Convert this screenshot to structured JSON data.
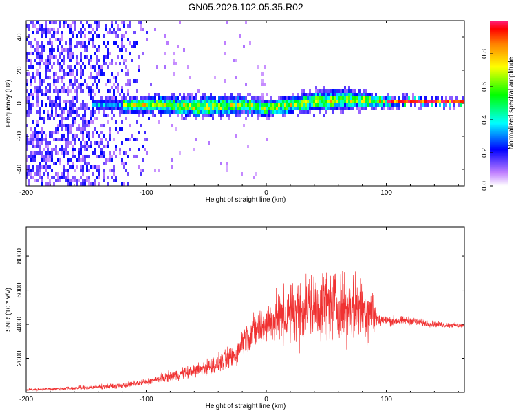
{
  "title": "GN05.2026.102.05.35.R02",
  "chart_data": [
    {
      "type": "heatmap",
      "xlabel": "Height of straight line (km)",
      "ylabel": "Frequency (Hz)",
      "xlim": [
        -200,
        165
      ],
      "ylim": [
        -50,
        50
      ],
      "xticks": [
        -200,
        -100,
        0,
        100
      ],
      "yticks": [
        -40,
        -20,
        0,
        20,
        40
      ],
      "colorbar": {
        "label": "Normalized spectral amplitude",
        "range": [
          0,
          1
        ],
        "ticks": [
          0.0,
          0.2,
          0.4,
          0.6,
          0.8
        ]
      },
      "band": {
        "x": [
          -140,
          -120,
          -100,
          -80,
          -60,
          -40,
          -20,
          0,
          20,
          40,
          60,
          80,
          100,
          120,
          140,
          165
        ],
        "center_hz": [
          0,
          0,
          0,
          0,
          -1,
          -1,
          0,
          -2,
          0,
          2,
          3,
          3,
          2,
          2,
          2,
          2
        ],
        "halfwidth_hz": [
          3,
          4,
          5,
          5,
          6,
          6,
          5,
          5,
          5,
          6,
          6,
          5,
          3,
          2,
          2,
          2
        ]
      }
    },
    {
      "type": "line",
      "series": [
        {
          "name": "SNR",
          "color": "#f03232"
        }
      ],
      "xlabel": "Height of straight line (km)",
      "ylabel": "SNR (10 * v/v)",
      "xlim": [
        -200,
        165
      ],
      "ylim": [
        0,
        9700
      ],
      "xticks": [
        -200,
        -100,
        0,
        100
      ],
      "yticks": [
        2000,
        4000,
        6000,
        8000
      ],
      "envelope": {
        "x": [
          -200,
          -150,
          -120,
          -100,
          -80,
          -60,
          -40,
          -25,
          -20,
          -10,
          0,
          10,
          20,
          30,
          40,
          50,
          60,
          70,
          80,
          88,
          92,
          100,
          120,
          140,
          165
        ],
        "mean": [
          150,
          280,
          400,
          600,
          950,
          1250,
          1700,
          2200,
          3000,
          3600,
          4000,
          4300,
          4600,
          5000,
          5000,
          5100,
          5100,
          5000,
          4900,
          4800,
          4300,
          4200,
          4200,
          4000,
          3900
        ],
        "amplitude": [
          100,
          180,
          220,
          300,
          420,
          600,
          800,
          1000,
          1200,
          1500,
          1800,
          2200,
          2600,
          3000,
          3000,
          3000,
          2900,
          2800,
          2700,
          2600,
          600,
          450,
          350,
          250,
          200
        ]
      }
    }
  ]
}
